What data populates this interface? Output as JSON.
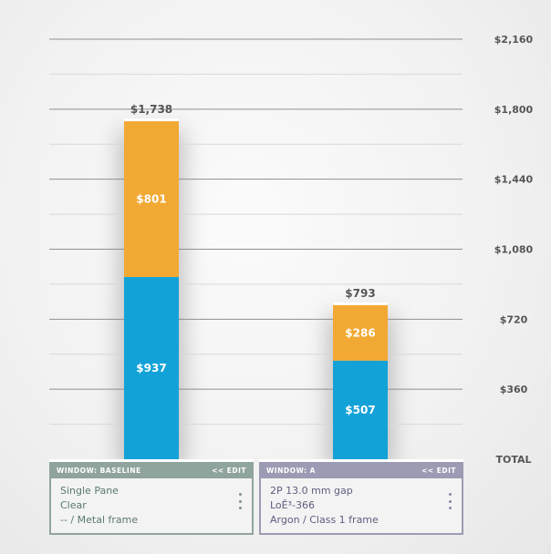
{
  "chart_data": {
    "type": "bar",
    "stacked": true,
    "categories": [
      "WINDOW: BASELINE",
      "WINDOW: A"
    ],
    "series": [
      {
        "values": [
          937,
          507
        ],
        "color": "#13a2d8"
      },
      {
        "values": [
          801,
          286
        ],
        "color": "#f2a933"
      }
    ],
    "totals": [
      1738,
      793
    ],
    "total_labels": [
      "$1,738",
      "$793"
    ],
    "segment_labels": [
      [
        "$937",
        "$801"
      ],
      [
        "$507",
        "$286"
      ]
    ],
    "ylim": [
      0,
      2160
    ],
    "yticks": [
      360,
      720,
      1080,
      1440,
      1800,
      2160
    ],
    "ytick_labels": [
      "$360",
      "$720",
      "$1,080",
      "$1,440",
      "$1,800",
      "$2,160"
    ],
    "axis_label": "TOTAL",
    "grid": true
  },
  "cards": [
    {
      "title": "WINDOW: BASELINE",
      "edit": "<< EDIT",
      "lines": [
        "Single Pane",
        "Clear",
        "-- / Metal frame"
      ]
    },
    {
      "title": "WINDOW: A",
      "edit": "<< EDIT",
      "lines": [
        "2P 13.0 mm gap",
        "LoĒ³-366",
        "Argon / Class 1 frame"
      ]
    }
  ]
}
